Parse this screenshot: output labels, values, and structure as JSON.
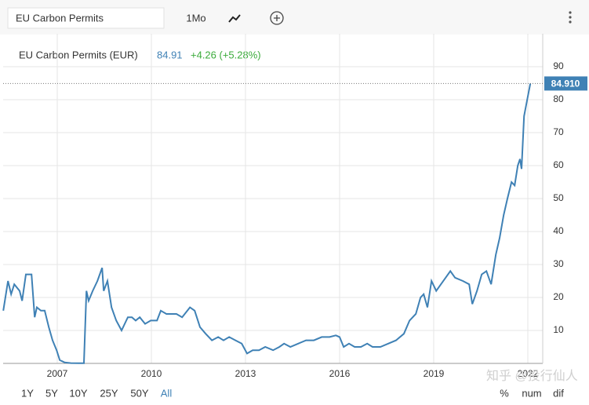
{
  "toolbar": {
    "search": "EU Carbon Permits",
    "interval": "1Mo"
  },
  "chart_data": {
    "type": "line",
    "title": "EU Carbon Permits (EUR)",
    "last_price": "84.91",
    "change": "+4.26 (+5.28%)",
    "last_value_label": "84.910",
    "xlim": [
      2005.275,
      2022.475
    ],
    "ylim": [
      0,
      100
    ],
    "xticks": [
      2007,
      2010,
      2013,
      2016,
      2019,
      2022
    ],
    "yticks": [
      10,
      20,
      30,
      40,
      50,
      60,
      70,
      80,
      90
    ],
    "grid": true,
    "series": [
      {
        "name": "EU Carbon Permits",
        "color": "#3f81b5",
        "x": [
          2005.28,
          2005.43,
          2005.53,
          2005.63,
          2005.8,
          2005.88,
          2006.0,
          2006.18,
          2006.28,
          2006.35,
          2006.48,
          2006.6,
          2006.73,
          2006.85,
          2006.98,
          2007.08,
          2007.23,
          2007.43,
          2007.68,
          2007.85,
          2007.93,
          2008.0,
          2008.13,
          2008.28,
          2008.43,
          2008.48,
          2008.6,
          2008.73,
          2008.88,
          2009.05,
          2009.25,
          2009.38,
          2009.5,
          2009.63,
          2009.8,
          2009.98,
          2010.18,
          2010.3,
          2010.48,
          2010.63,
          2010.8,
          2010.98,
          2011.23,
          2011.38,
          2011.55,
          2011.73,
          2011.93,
          2012.13,
          2012.3,
          2012.48,
          2012.68,
          2012.88,
          2013.05,
          2013.23,
          2013.43,
          2013.63,
          2013.88,
          2014.08,
          2014.23,
          2014.43,
          2014.68,
          2014.93,
          2015.18,
          2015.43,
          2015.68,
          2015.88,
          2016.0,
          2016.13,
          2016.3,
          2016.48,
          2016.68,
          2016.88,
          2017.05,
          2017.3,
          2017.55,
          2017.8,
          2018.05,
          2018.23,
          2018.43,
          2018.58,
          2018.68,
          2018.8,
          2018.93,
          2019.08,
          2019.23,
          2019.38,
          2019.53,
          2019.68,
          2019.93,
          2020.13,
          2020.23,
          2020.38,
          2020.53,
          2020.68,
          2020.83,
          2020.98,
          2021.1,
          2021.23,
          2021.35,
          2021.48,
          2021.58,
          2021.68,
          2021.75,
          2021.8,
          2021.88,
          2021.98,
          2022.08
        ],
        "values": [
          16,
          25,
          21,
          24,
          22,
          19,
          27,
          27,
          14,
          17,
          16,
          16,
          11,
          7,
          4,
          1,
          0.3,
          0.1,
          0.05,
          0.05,
          22,
          19,
          22,
          25,
          29,
          22,
          25,
          17,
          13,
          10,
          14,
          14,
          13,
          14,
          12,
          13,
          13,
          16,
          15,
          15,
          15,
          14,
          17,
          16,
          11,
          9,
          7,
          8,
          7,
          8,
          7,
          6,
          3,
          4,
          4,
          5,
          4,
          5,
          6,
          5,
          6,
          7,
          7,
          8,
          8,
          8.5,
          8,
          5,
          6,
          5,
          5,
          6,
          5,
          5,
          6,
          7,
          9,
          13,
          15,
          20,
          21,
          17,
          25,
          22,
          24,
          26,
          28,
          26,
          25,
          24,
          18,
          22,
          27,
          28,
          24,
          33,
          38,
          45,
          50,
          55,
          54,
          60,
          62,
          59,
          75,
          80,
          84.91
        ]
      }
    ]
  },
  "range_buttons": [
    "1Y",
    "5Y",
    "10Y",
    "25Y",
    "50Y",
    "All"
  ],
  "mode_buttons": [
    "%",
    "num",
    "dif"
  ],
  "watermark": "知乎 @投行仙人"
}
